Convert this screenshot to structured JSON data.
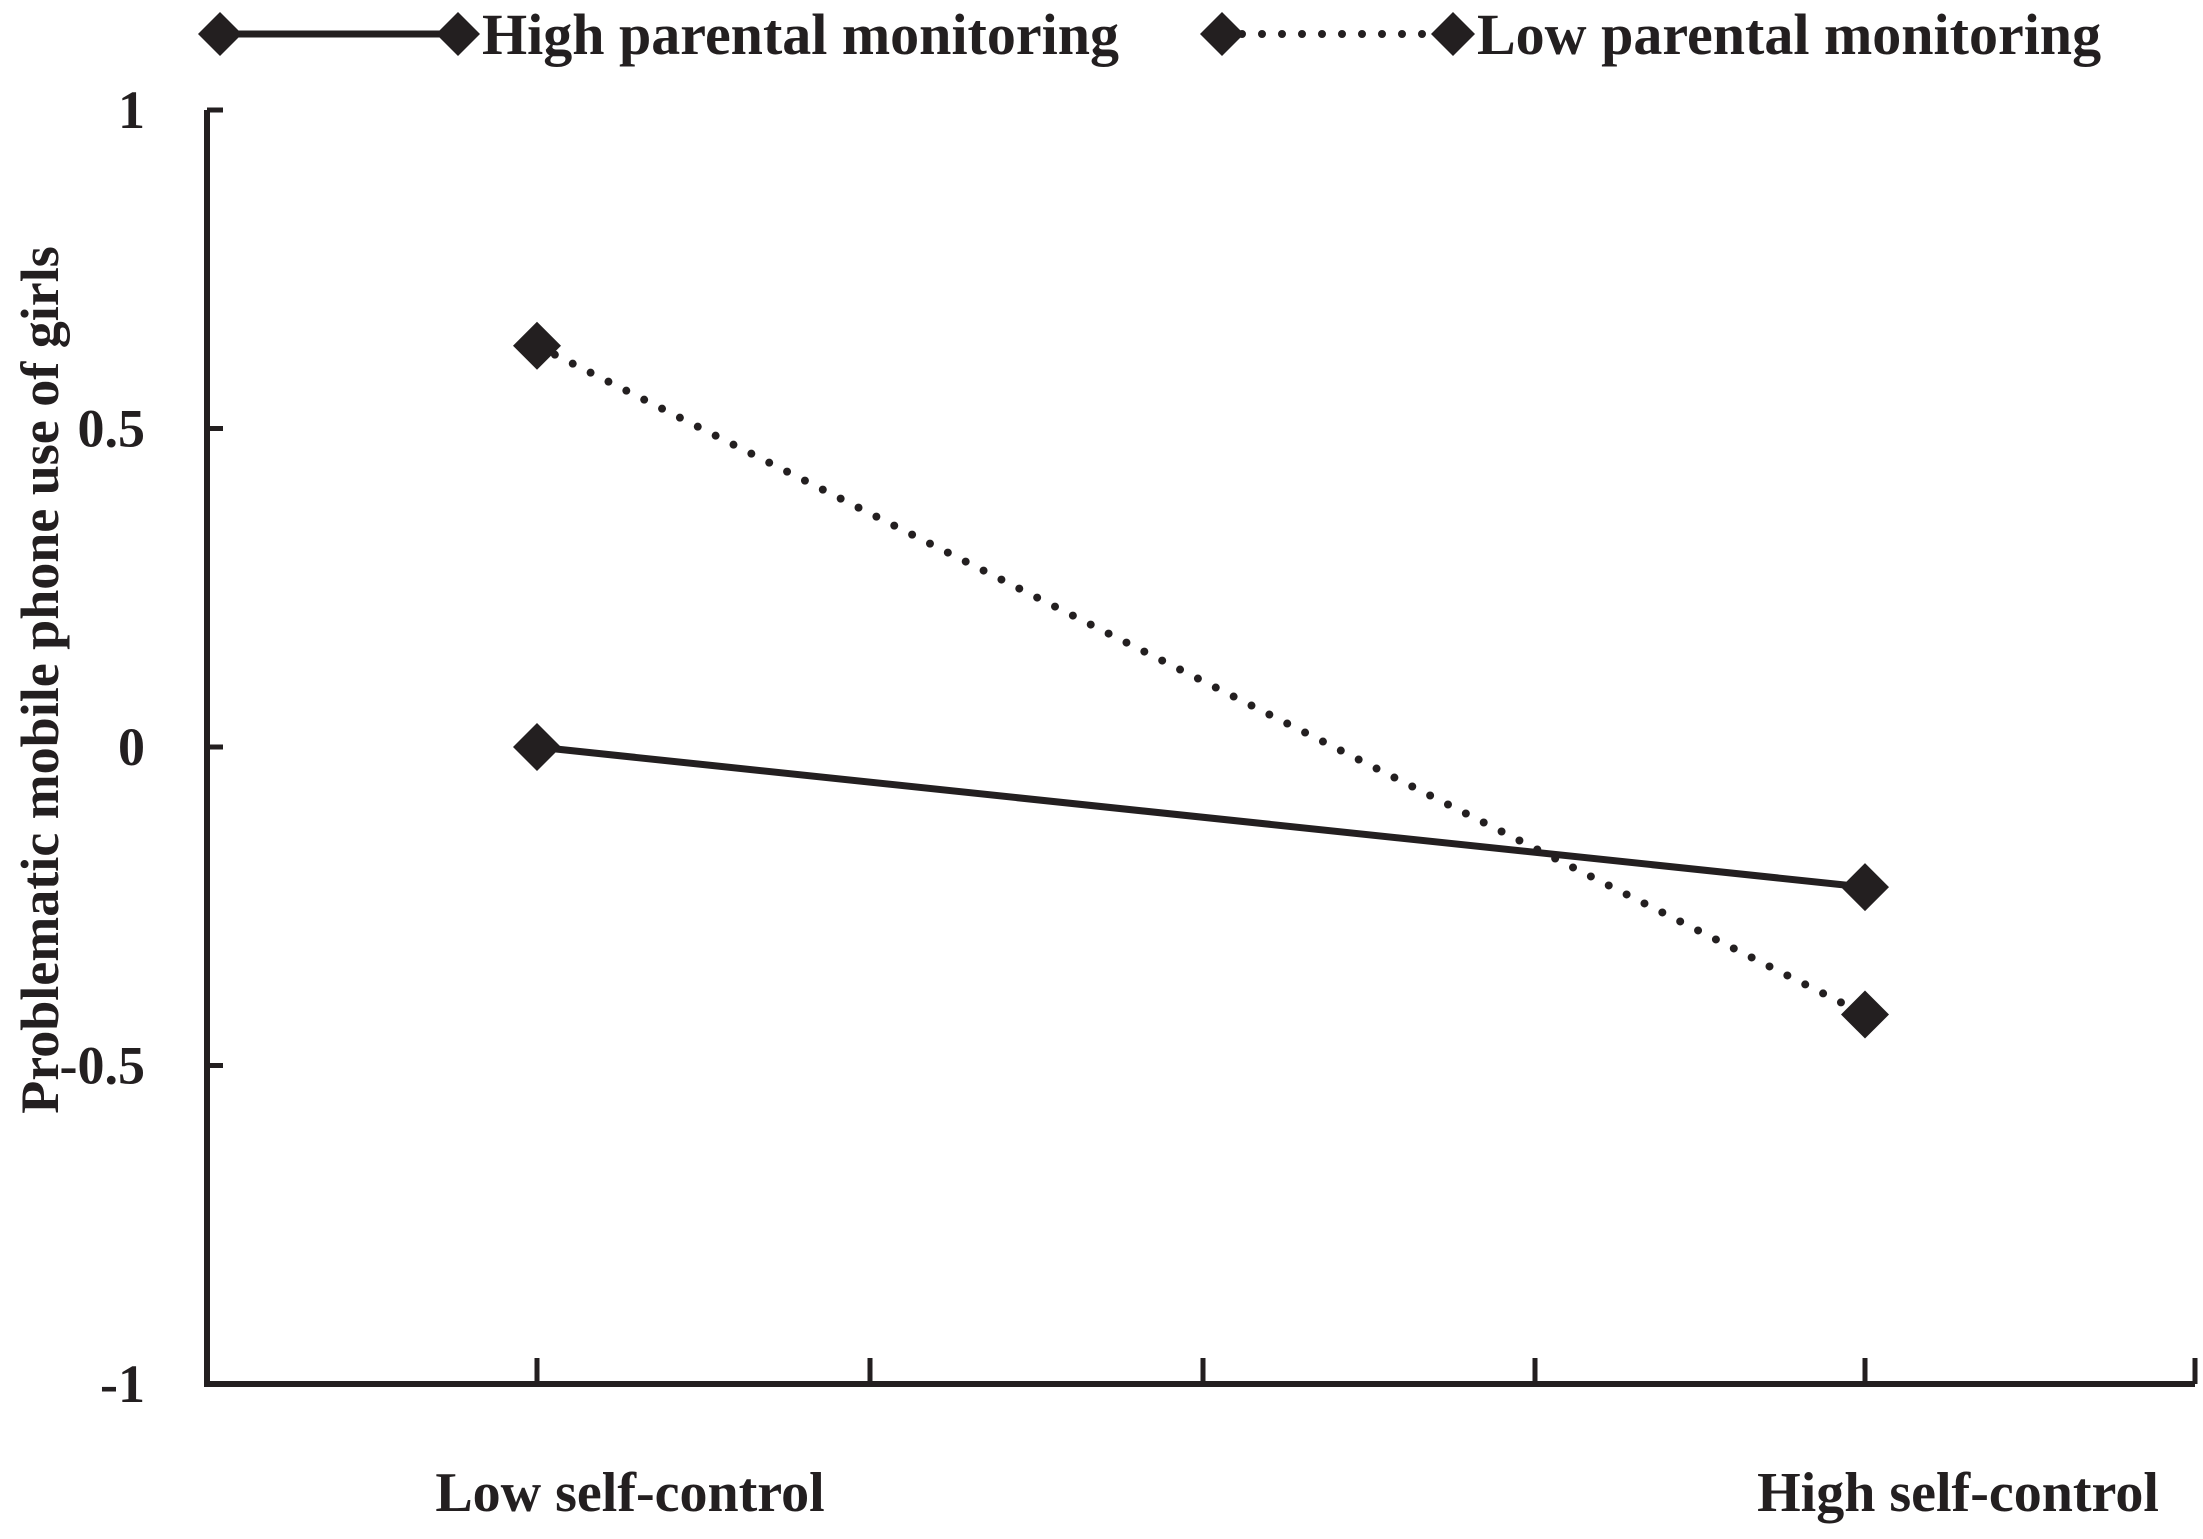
{
  "chart_data": {
    "type": "line",
    "title": "",
    "xlabel": "",
    "ylabel": "Problematic mobile phone use of girls",
    "categories": [
      "Low self-control",
      "High self-control"
    ],
    "series": [
      {
        "name": "High parental monitoring",
        "values": [
          0.0,
          -0.22
        ],
        "line_style": "solid",
        "marker": "diamond",
        "color": "#231f20"
      },
      {
        "name": "Low parental monitoring",
        "values": [
          0.63,
          -0.42
        ],
        "line_style": "dotted",
        "marker": "diamond",
        "color": "#231f20"
      }
    ],
    "ylim": [
      -1,
      1
    ],
    "yticks": [
      -1,
      -0.5,
      0,
      0.5,
      1
    ],
    "ytick_labels": [
      "-1",
      "-0.5",
      "0",
      "0.5",
      "1"
    ],
    "grid": false,
    "legend_position": "top"
  }
}
